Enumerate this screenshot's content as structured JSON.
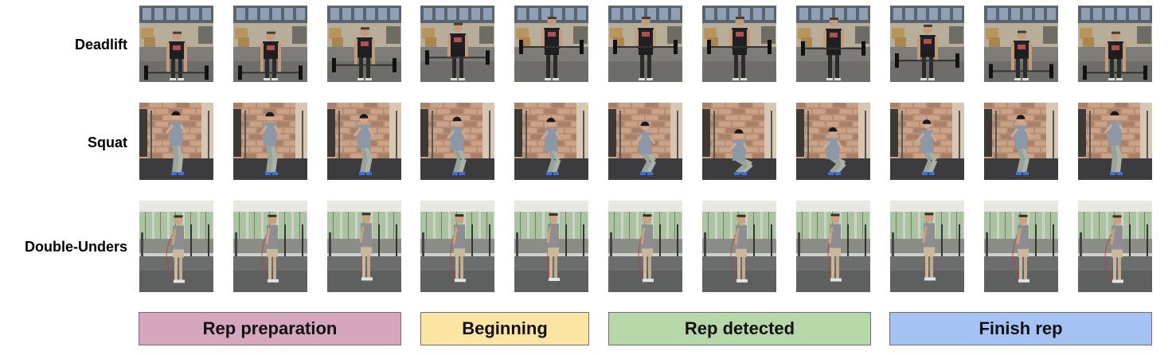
{
  "rows": [
    {
      "label": "Deadlift",
      "scene": "gym-warehouse",
      "frames": 11
    },
    {
      "label": "Squat",
      "scene": "brick-wall-gym",
      "frames": 11
    },
    {
      "label": "Double-Unders",
      "scene": "industrial-gym",
      "frames": 11
    }
  ],
  "phases": [
    {
      "label": "Rep preparation",
      "color": "#d5a6bd"
    },
    {
      "label": "Beginning",
      "color": "#fce5a3"
    },
    {
      "label": "Rep detected",
      "color": "#b6d7a8"
    },
    {
      "label": "Finish rep",
      "color": "#a4c2f4"
    }
  ]
}
